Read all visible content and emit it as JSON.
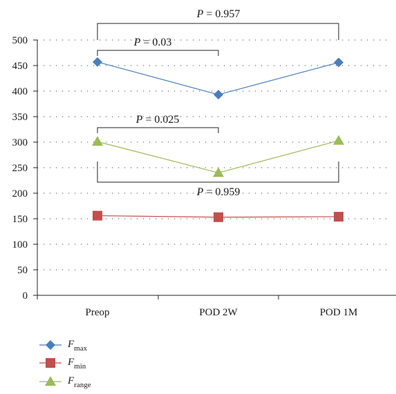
{
  "chart_data": {
    "type": "line",
    "categories": [
      "Preop",
      "POD 2W",
      "POD 1M"
    ],
    "ylim": [
      0,
      500
    ],
    "yticks": [
      0,
      50,
      100,
      150,
      200,
      250,
      300,
      350,
      400,
      450,
      500
    ],
    "grid": "horizontal dotted",
    "legend_position": "bottom-left",
    "series": [
      {
        "name": "F",
        "subscript": "max",
        "marker": "diamond",
        "color": "#4a7ebb",
        "values": [
          457,
          393,
          456
        ]
      },
      {
        "name": "F",
        "subscript": "min",
        "marker": "square",
        "color": "#c0504d",
        "values": [
          156,
          153,
          154
        ]
      },
      {
        "name": "F",
        "subscript": "range",
        "marker": "triangle",
        "color": "#9bbb59",
        "values": [
          301,
          240,
          303
        ]
      }
    ],
    "annotations": [
      {
        "label": "P",
        "text": " = 0.957",
        "from": "Preop",
        "to": "POD 1M",
        "side": "top"
      },
      {
        "label": "P",
        "text": " = 0.03",
        "from": "Preop",
        "to": "POD 2W",
        "side": "top"
      },
      {
        "label": "P",
        "text": " = 0.025",
        "from": "Preop",
        "to": "POD 2W",
        "side": "top"
      },
      {
        "label": "P",
        "text": " = 0.959",
        "from": "Preop",
        "to": "POD 1M",
        "side": "bottom"
      }
    ]
  }
}
